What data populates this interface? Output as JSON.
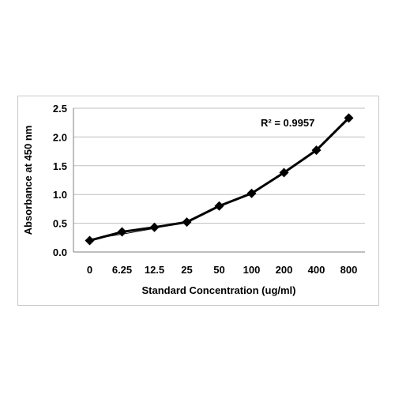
{
  "chart_data": {
    "type": "line",
    "categories": [
      "0",
      "6.25",
      "12.5",
      "25",
      "50",
      "100",
      "200",
      "400",
      "800"
    ],
    "series": [
      {
        "values": [
          0.2,
          0.35,
          0.43,
          0.52,
          0.8,
          1.02,
          1.38,
          1.77,
          2.33
        ]
      }
    ],
    "trendline": {
      "type": "polynomial",
      "values": [
        0.22,
        0.31,
        0.41,
        0.54,
        0.79,
        1.03,
        1.37,
        1.79,
        2.31
      ],
      "annotation": "R² = 0.9957"
    },
    "xlabel": "Standard Concentration (ug/ml)",
    "ylabel": "Absorbance at 450 nm",
    "ylim": [
      0,
      2.5
    ],
    "yticks": [
      "0.0",
      "0.5",
      "1.0",
      "1.5",
      "2.0",
      "2.5"
    ],
    "grid": true,
    "marker": "diamond",
    "colors": {
      "series": "#000000",
      "grid": "#bfbfbf",
      "frame": "#c8c8c8"
    }
  }
}
